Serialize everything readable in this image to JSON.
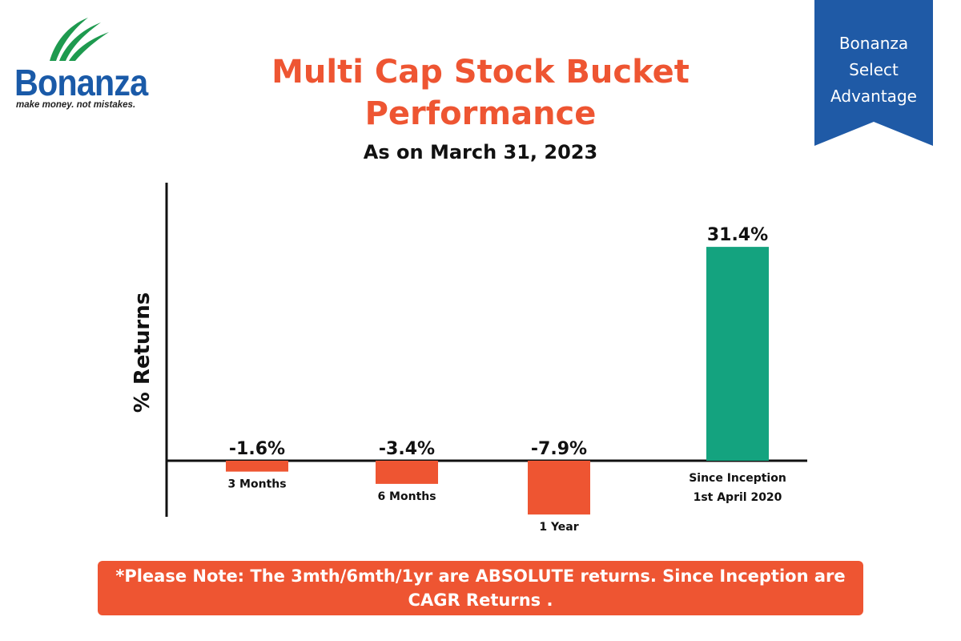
{
  "brand": {
    "name": "Bonanza",
    "tagline": "make money. not mistakes."
  },
  "badge": {
    "lines": [
      "Bonanza",
      "Select",
      "Advantage"
    ],
    "color": "#1f5aa6"
  },
  "chart_data": {
    "type": "bar",
    "title": "Multi Cap Stock Bucket Performance",
    "subtitle": "As on March 31, 2023",
    "ylabel": "% Returns",
    "xlabel": "",
    "categories": [
      [
        "3 Months"
      ],
      [
        "6 Months"
      ],
      [
        "1 Year"
      ],
      [
        "Since Inception",
        "1st April 2020"
      ]
    ],
    "values": [
      -1.6,
      -3.4,
      -7.9,
      31.4
    ],
    "value_labels": [
      "-1.6%",
      "-3.4%",
      "-7.9%",
      "31.4%"
    ],
    "colors": [
      "#ee5532",
      "#ee5532",
      "#ee5532",
      "#14a37f"
    ],
    "ylim": [
      -9,
      35
    ],
    "grid": false,
    "legend": "none"
  },
  "note": {
    "text": "*Please Note: The 3mth/6mth/1yr are ABSOLUTE returns. Since Inception are CAGR Returns ."
  }
}
